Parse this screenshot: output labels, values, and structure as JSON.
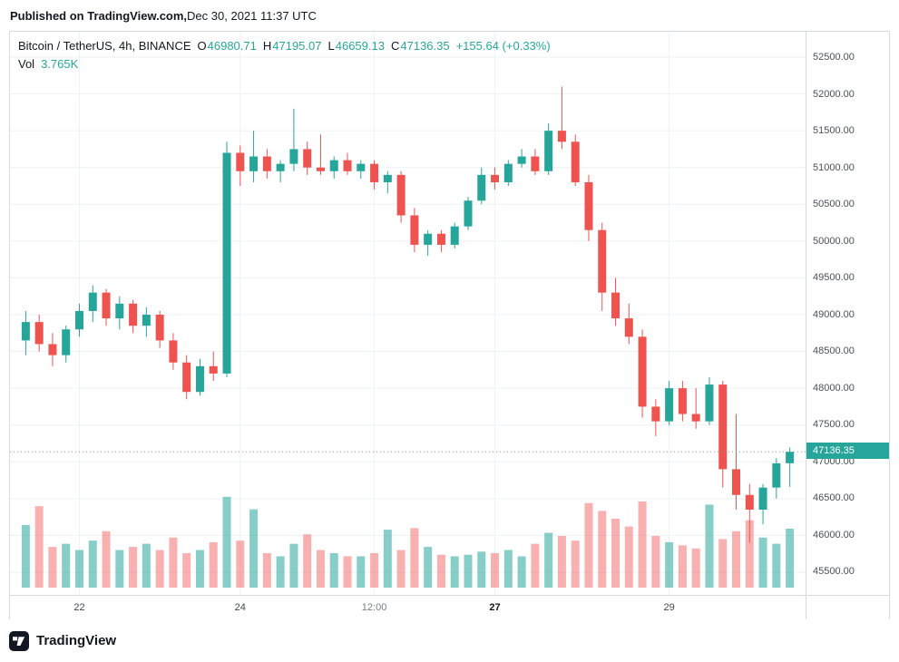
{
  "published": {
    "site": "Published on TradingView.com,",
    "date": " Dec 30, 2021 11:37 UTC"
  },
  "legend": {
    "symbol": "Bitcoin / TetherUS, 4h, BINANCE",
    "o_label": "O",
    "o_value": "46980.71",
    "h_label": "H",
    "h_value": "47195.07",
    "l_label": "L",
    "l_value": "46659.13",
    "c_label": "C",
    "c_value": "47136.35",
    "change": "+155.64 (+0.33%)",
    "vol_label": "Vol",
    "vol_value": "3.765K"
  },
  "footer": {
    "brand": "TradingView"
  },
  "colors": {
    "up": "#26a69a",
    "down": "#ef5350",
    "vol_up": "rgba(38,166,154,0.55)",
    "vol_down": "rgba(239,83,80,0.45)",
    "grid": "#eef1f6",
    "last_price_line": "#9598a1",
    "accent_text": "#26a69a",
    "tag_bg": "#26a69a",
    "axis_text": "#4c4f59"
  },
  "chart_data": {
    "type": "candlestick",
    "symbol": "Bitcoin / TetherUS",
    "interval": "4h",
    "exchange": "BINANCE",
    "legend_position": "top-left",
    "grid": true,
    "last_price": 47136.35,
    "last_price_label": "47136.35",
    "volume_scale_max": 5.8,
    "price_axis": [
      "52500.00",
      "52000.00",
      "51500.00",
      "51000.00",
      "50500.00",
      "50000.00",
      "49500.00",
      "49000.00",
      "48500.00",
      "48000.00",
      "47500.00",
      "47000.00",
      "46500.00",
      "46000.00",
      "45500.00"
    ],
    "time_labels": [
      {
        "label": "22",
        "index": 4,
        "bold": false,
        "muted": false
      },
      {
        "label": "24",
        "index": 16,
        "bold": false,
        "muted": false
      },
      {
        "label": "12:00",
        "index": 26,
        "bold": false,
        "muted": true
      },
      {
        "label": "27",
        "index": 35,
        "bold": true,
        "muted": false
      },
      {
        "label": "29",
        "index": 48,
        "bold": false,
        "muted": false
      }
    ],
    "candles_format": [
      "open",
      "high",
      "low",
      "close",
      "volume_K"
    ],
    "candles": [
      [
        48650,
        49050,
        48450,
        48900,
        4.0
      ],
      [
        48900,
        49000,
        48500,
        48600,
        5.2
      ],
      [
        48600,
        48750,
        48300,
        48450,
        2.6
      ],
      [
        48450,
        48850,
        48350,
        48800,
        2.8
      ],
      [
        48800,
        49150,
        48700,
        49050,
        2.4
      ],
      [
        49050,
        49400,
        48900,
        49300,
        3.0
      ],
      [
        49300,
        49350,
        48850,
        48950,
        3.6
      ],
      [
        48950,
        49250,
        48800,
        49150,
        2.4
      ],
      [
        49150,
        49200,
        48750,
        48850,
        2.6
      ],
      [
        48850,
        49100,
        48700,
        49000,
        2.8
      ],
      [
        49000,
        49050,
        48550,
        48650,
        2.4
      ],
      [
        48650,
        48750,
        48250,
        48350,
        3.2
      ],
      [
        48350,
        48450,
        47850,
        47950,
        2.2
      ],
      [
        47950,
        48400,
        47900,
        48300,
        2.4
      ],
      [
        48300,
        48500,
        48100,
        48200,
        2.9
      ],
      [
        48200,
        51350,
        48150,
        51200,
        5.8
      ],
      [
        51200,
        51300,
        50750,
        50950,
        3.0
      ],
      [
        50950,
        51500,
        50800,
        51150,
        5.0
      ],
      [
        51150,
        51250,
        50850,
        50950,
        2.2
      ],
      [
        50950,
        51100,
        50800,
        51050,
        2.0
      ],
      [
        51050,
        51800,
        50950,
        51250,
        2.8
      ],
      [
        51250,
        51350,
        50900,
        51000,
        3.4
      ],
      [
        51000,
        51450,
        50900,
        50950,
        2.4
      ],
      [
        50950,
        51150,
        50850,
        51100,
        2.2
      ],
      [
        51100,
        51200,
        50900,
        50950,
        2.0
      ],
      [
        50950,
        51100,
        50850,
        51050,
        2.0
      ],
      [
        51050,
        51100,
        50700,
        50800,
        2.2
      ],
      [
        50800,
        50950,
        50650,
        50900,
        3.7
      ],
      [
        50900,
        50950,
        50250,
        50350,
        2.4
      ],
      [
        50350,
        50450,
        49850,
        49950,
        3.8
      ],
      [
        49950,
        50150,
        49800,
        50100,
        2.6
      ],
      [
        50100,
        50150,
        49850,
        49950,
        2.1
      ],
      [
        49950,
        50250,
        49900,
        50200,
        2.0
      ],
      [
        50200,
        50600,
        50150,
        50550,
        2.1
      ],
      [
        50550,
        51000,
        50500,
        50900,
        2.3
      ],
      [
        50900,
        51000,
        50700,
        50800,
        2.2
      ],
      [
        50800,
        51100,
        50750,
        51050,
        2.4
      ],
      [
        51050,
        51250,
        51000,
        51150,
        2.0
      ],
      [
        51150,
        51250,
        50900,
        50950,
        2.8
      ],
      [
        50950,
        51600,
        50900,
        51500,
        3.5
      ],
      [
        51500,
        52100,
        51250,
        51350,
        3.3
      ],
      [
        51350,
        51450,
        50750,
        50800,
        3.0
      ],
      [
        50800,
        50900,
        50000,
        50150,
        5.4
      ],
      [
        50150,
        50250,
        49050,
        49300,
        4.9
      ],
      [
        49300,
        49500,
        48850,
        48950,
        4.4
      ],
      [
        48950,
        49150,
        48600,
        48700,
        3.9
      ],
      [
        48700,
        48800,
        47600,
        47750,
        5.5
      ],
      [
        47750,
        47850,
        47350,
        47550,
        3.3
      ],
      [
        47550,
        48100,
        47500,
        48000,
        2.9
      ],
      [
        48000,
        48100,
        47550,
        47650,
        2.7
      ],
      [
        47650,
        48000,
        47450,
        47550,
        2.5
      ],
      [
        47550,
        48150,
        47500,
        48050,
        5.3
      ],
      [
        48050,
        48100,
        46650,
        46900,
        3.1
      ],
      [
        46900,
        47650,
        46350,
        46550,
        3.6
      ],
      [
        46550,
        46700,
        45900,
        46350,
        4.3
      ],
      [
        46350,
        46700,
        46150,
        46650,
        3.2
      ],
      [
        46650,
        47050,
        46500,
        46980,
        2.8
      ],
      [
        46980.71,
        47195.07,
        46659.13,
        47136.35,
        3.765
      ]
    ]
  }
}
